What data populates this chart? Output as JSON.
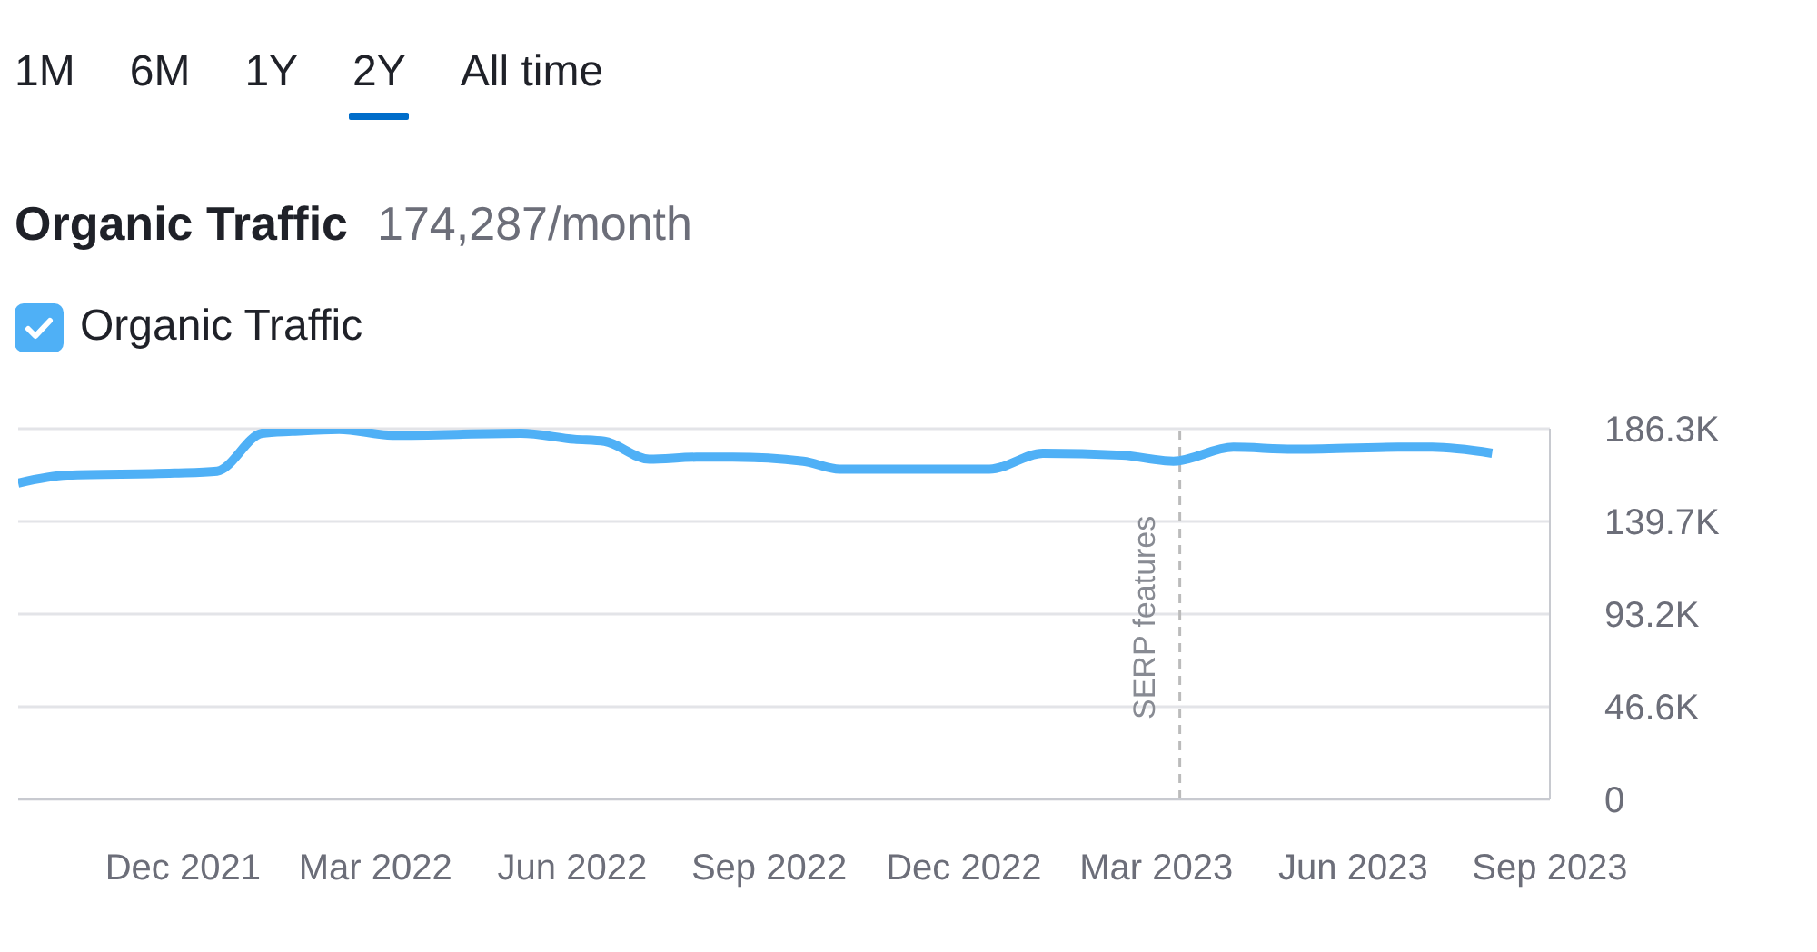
{
  "chart_data": {
    "type": "line",
    "title": "Organic Traffic",
    "subtitle": "174,287/month",
    "annotations": [
      "1M",
      "6M",
      "1Y",
      "2Y",
      "All time"
    ],
    "x": [
      "2021-09-15",
      "2021-10-08",
      "2021-11-27",
      "2021-12-17",
      "2022-01-07",
      "2022-01-21",
      "2022-02-12",
      "2022-03-09",
      "2022-05-08",
      "2022-06-02",
      "2022-06-16",
      "2022-07-07",
      "2022-07-29",
      "2022-08-15",
      "2022-09-17",
      "2022-10-04",
      "2022-11-06",
      "2022-12-13",
      "2023-01-07",
      "2023-02-13",
      "2023-03-09",
      "2023-04-06",
      "2023-05-04",
      "2023-06-22",
      "2023-07-08",
      "2023-08-05"
    ],
    "series": [
      {
        "name": "Organic Traffic",
        "color": "#4fb0f6",
        "values": [
          159,
          163,
          164,
          165,
          184,
          185,
          186,
          183,
          184,
          181,
          180,
          171,
          172,
          172,
          170,
          166,
          166,
          166,
          174,
          173,
          170,
          177,
          176,
          177,
          177,
          174
        ]
      }
    ],
    "xlim": [
      "2021-09-15",
      "2023-09-01"
    ],
    "xticks": [
      {
        "value": "2021-12",
        "label": "Dec 2021"
      },
      {
        "value": "2022-03",
        "label": "Mar 2022"
      },
      {
        "value": "2022-06",
        "label": "Jun 2022"
      },
      {
        "value": "2022-09",
        "label": "Sep 2022"
      },
      {
        "value": "2022-12",
        "label": "Dec 2022"
      },
      {
        "value": "2023-03",
        "label": "Mar 2023"
      },
      {
        "value": "2023-06",
        "label": "Jun 2023"
      },
      {
        "value": "2023-09",
        "label": "Sep 2023"
      }
    ],
    "ylim": [
      0,
      186.3
    ],
    "yticks": [
      {
        "value": 0,
        "label": "0"
      },
      {
        "value": 46.6,
        "label": "46.6K"
      },
      {
        "value": 93.2,
        "label": "93.2K"
      },
      {
        "value": 139.7,
        "label": "139.7K"
      },
      {
        "value": 186.3,
        "label": "186.3K"
      }
    ],
    "ref_lines": [
      {
        "axis": "x",
        "value": "2023-03-12",
        "label": "SERP features",
        "color": "#bbbbbb",
        "line_style": "dashed"
      }
    ],
    "grid": "y",
    "legend": "top left",
    "marker": "none",
    "line_style": "solid"
  }
}
